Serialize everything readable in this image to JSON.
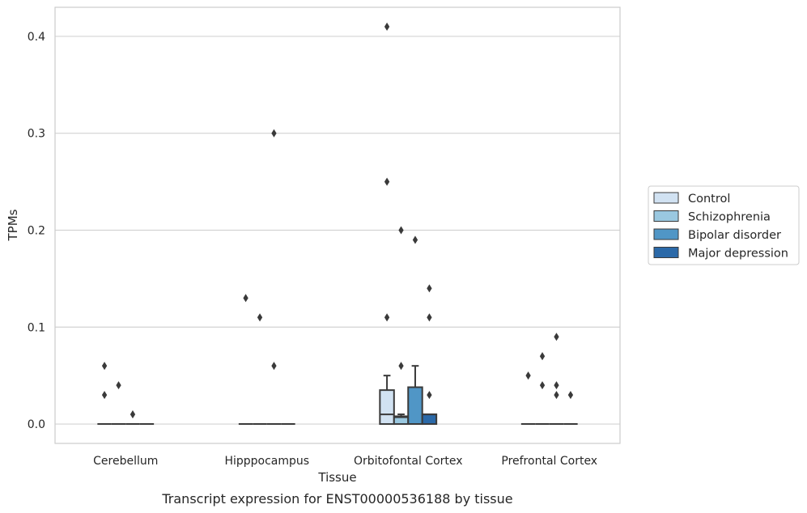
{
  "caption": "Transcript expression for ENST00000536188 by tissue",
  "chart_data": {
    "type": "box",
    "title": "",
    "xlabel": "Tissue",
    "ylabel": "TPMs",
    "ylim": [
      -0.02,
      0.43
    ],
    "yticks": [
      "0.0",
      "0.1",
      "0.2",
      "0.3",
      "0.4"
    ],
    "grid": "horizontal",
    "legend_position": "right",
    "categories": [
      "Cerebellum",
      "Hipppocampus",
      "Orbitofontal Cortex",
      "Prefrontal Cortex"
    ],
    "series": [
      {
        "name": "Control",
        "color": "#d1e2f2",
        "boxes": [
          {
            "q1": 0,
            "median": 0,
            "q3": 0,
            "whisker_low": 0,
            "whisker_high": 0,
            "outliers": [
              0.06,
              0.03
            ]
          },
          {
            "q1": 0,
            "median": 0,
            "q3": 0,
            "whisker_low": 0,
            "whisker_high": 0,
            "outliers": [
              0.13
            ]
          },
          {
            "q1": 0,
            "median": 0.01,
            "q3": 0.035,
            "whisker_low": 0,
            "whisker_high": 0.05,
            "outliers": [
              0.41,
              0.25,
              0.11
            ]
          },
          {
            "q1": 0,
            "median": 0,
            "q3": 0,
            "whisker_low": 0,
            "whisker_high": 0,
            "outliers": [
              0.05
            ]
          }
        ]
      },
      {
        "name": "Schizophrenia",
        "color": "#9ac8e0",
        "boxes": [
          {
            "q1": 0,
            "median": 0,
            "q3": 0,
            "whisker_low": 0,
            "whisker_high": 0,
            "outliers": [
              0.04
            ]
          },
          {
            "q1": 0,
            "median": 0,
            "q3": 0,
            "whisker_low": 0,
            "whisker_high": 0,
            "outliers": [
              0.11
            ]
          },
          {
            "q1": 0,
            "median": 0.007,
            "q3": 0.008,
            "whisker_low": 0,
            "whisker_high": 0.01,
            "outliers": [
              0.2,
              0.06
            ]
          },
          {
            "q1": 0,
            "median": 0,
            "q3": 0,
            "whisker_low": 0,
            "whisker_high": 0,
            "outliers": [
              0.07,
              0.04
            ]
          }
        ]
      },
      {
        "name": "Bipolar disorder",
        "color": "#5096c6",
        "boxes": [
          {
            "q1": 0,
            "median": 0,
            "q3": 0,
            "whisker_low": 0,
            "whisker_high": 0,
            "outliers": [
              0.01
            ]
          },
          {
            "q1": 0,
            "median": 0,
            "q3": 0,
            "whisker_low": 0,
            "whisker_high": 0,
            "outliers": [
              0.3,
              0.06
            ]
          },
          {
            "q1": 0,
            "median": 0,
            "q3": 0.038,
            "whisker_low": 0,
            "whisker_high": 0.06,
            "outliers": [
              0.19
            ]
          },
          {
            "q1": 0,
            "median": 0,
            "q3": 0,
            "whisker_low": 0,
            "whisker_high": 0,
            "outliers": [
              0.09,
              0.04,
              0.03
            ]
          }
        ]
      },
      {
        "name": "Major depression",
        "color": "#2b69a8",
        "boxes": [
          {
            "q1": 0,
            "median": 0,
            "q3": 0,
            "whisker_low": 0,
            "whisker_high": 0,
            "outliers": []
          },
          {
            "q1": 0,
            "median": 0,
            "q3": 0,
            "whisker_low": 0,
            "whisker_high": 0,
            "outliers": []
          },
          {
            "q1": 0,
            "median": 0.01,
            "q3": 0.01,
            "whisker_low": 0,
            "whisker_high": 0.01,
            "outliers": [
              0.14,
              0.11,
              0.03
            ]
          },
          {
            "q1": 0,
            "median": 0,
            "q3": 0,
            "whisker_low": 0,
            "whisker_high": 0,
            "outliers": [
              0.03
            ]
          }
        ]
      }
    ]
  }
}
